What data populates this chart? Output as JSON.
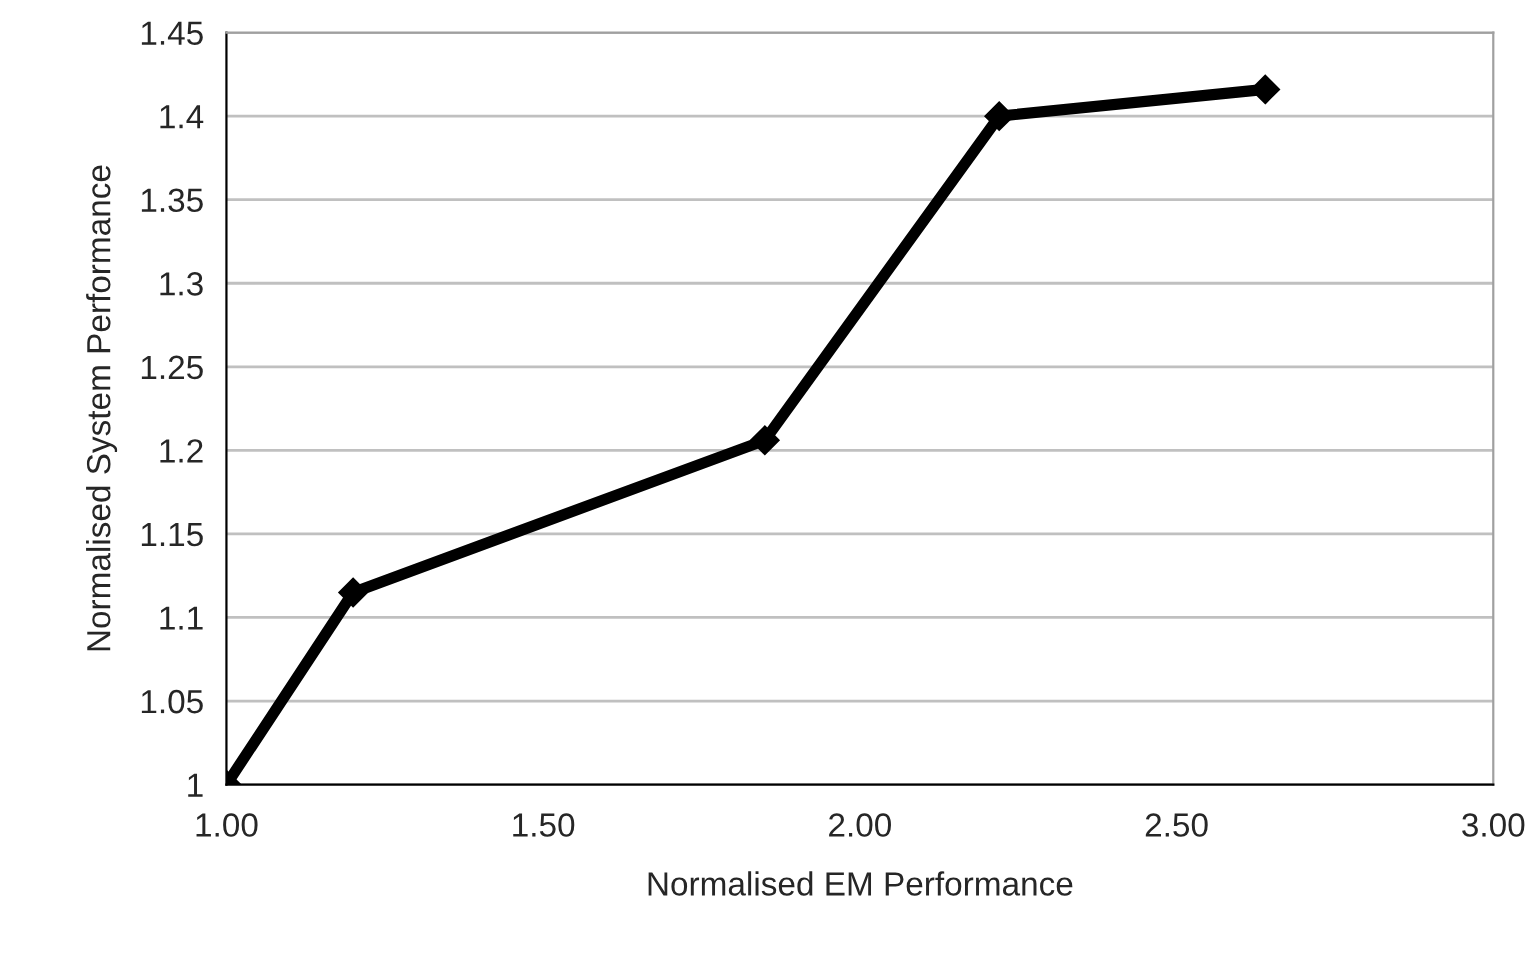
{
  "chart_data": {
    "type": "line",
    "xlabel": "Normalised EM Performance",
    "ylabel": "Normalised System Performance",
    "x": [
      1.0,
      1.2,
      1.85,
      2.22,
      2.64
    ],
    "series": [
      {
        "color": "#000000",
        "values": [
          1.0,
          1.115,
          1.206,
          1.4,
          1.416
        ]
      }
    ],
    "xlim": [
      1.0,
      3.0
    ],
    "xticks": [
      {
        "value": 1.0,
        "label": "1.00"
      },
      {
        "value": 1.5,
        "label": "1.50"
      },
      {
        "value": 2.0,
        "label": "2.00"
      },
      {
        "value": 2.5,
        "label": "2.50"
      },
      {
        "value": 3.0,
        "label": "3.00"
      }
    ],
    "ylim": [
      1.0,
      1.45
    ],
    "yticks": [
      1,
      1.05,
      1.1,
      1.15,
      1.2,
      1.25,
      1.3,
      1.35,
      1.4,
      1.45
    ],
    "grid": "y",
    "marker": "diamond",
    "line_style": "solid",
    "legend": false
  }
}
